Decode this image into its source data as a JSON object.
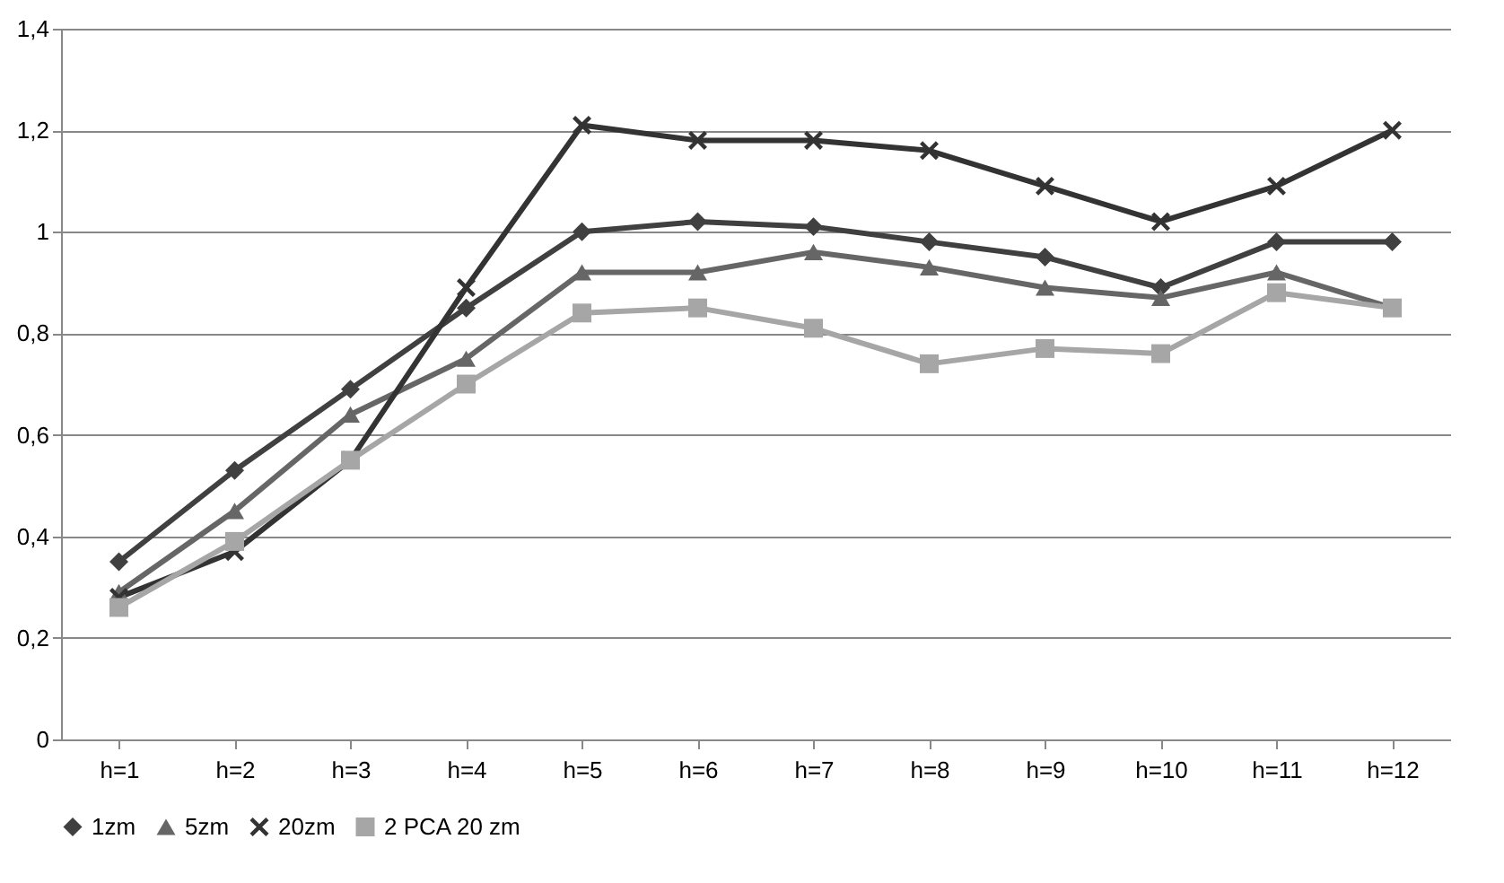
{
  "chart_data": {
    "type": "line",
    "categories": [
      "h=1",
      "h=2",
      "h=3",
      "h=4",
      "h=5",
      "h=6",
      "h=7",
      "h=8",
      "h=9",
      "h=10",
      "h=11",
      "h=12"
    ],
    "series": [
      {
        "name": "1zm",
        "color": "#404040",
        "marker": "diamond",
        "values": [
          0.35,
          0.53,
          0.69,
          0.85,
          1.0,
          1.02,
          1.01,
          0.98,
          0.95,
          0.89,
          0.98,
          0.98
        ]
      },
      {
        "name": "5zm",
        "color": "#666666",
        "marker": "triangle",
        "values": [
          0.29,
          0.45,
          0.64,
          0.75,
          0.92,
          0.92,
          0.96,
          0.93,
          0.89,
          0.87,
          0.92,
          0.85
        ]
      },
      {
        "name": "20zm",
        "color": "#333333",
        "marker": "cross",
        "values": [
          0.28,
          0.37,
          0.55,
          0.89,
          1.21,
          1.18,
          1.18,
          1.16,
          1.09,
          1.02,
          1.09,
          1.2
        ]
      },
      {
        "name": "2 PCA 20 zm",
        "color": "#a6a6a6",
        "marker": "square",
        "values": [
          0.26,
          0.39,
          0.55,
          0.7,
          0.84,
          0.85,
          0.81,
          0.74,
          0.77,
          0.76,
          0.88,
          0.85
        ]
      }
    ],
    "ylim": [
      0,
      1.4
    ],
    "yticks": [
      {
        "value": 0,
        "label": "0"
      },
      {
        "value": 0.2,
        "label": "0,2"
      },
      {
        "value": 0.4,
        "label": "0,4"
      },
      {
        "value": 0.6,
        "label": "0,6"
      },
      {
        "value": 0.8,
        "label": "0,8"
      },
      {
        "value": 1,
        "label": "1"
      },
      {
        "value": 1.2,
        "label": "1,2"
      },
      {
        "value": 1.4,
        "label": "1,4"
      }
    ],
    "grid": "y",
    "legend": "bottom",
    "line_style": "solid"
  }
}
